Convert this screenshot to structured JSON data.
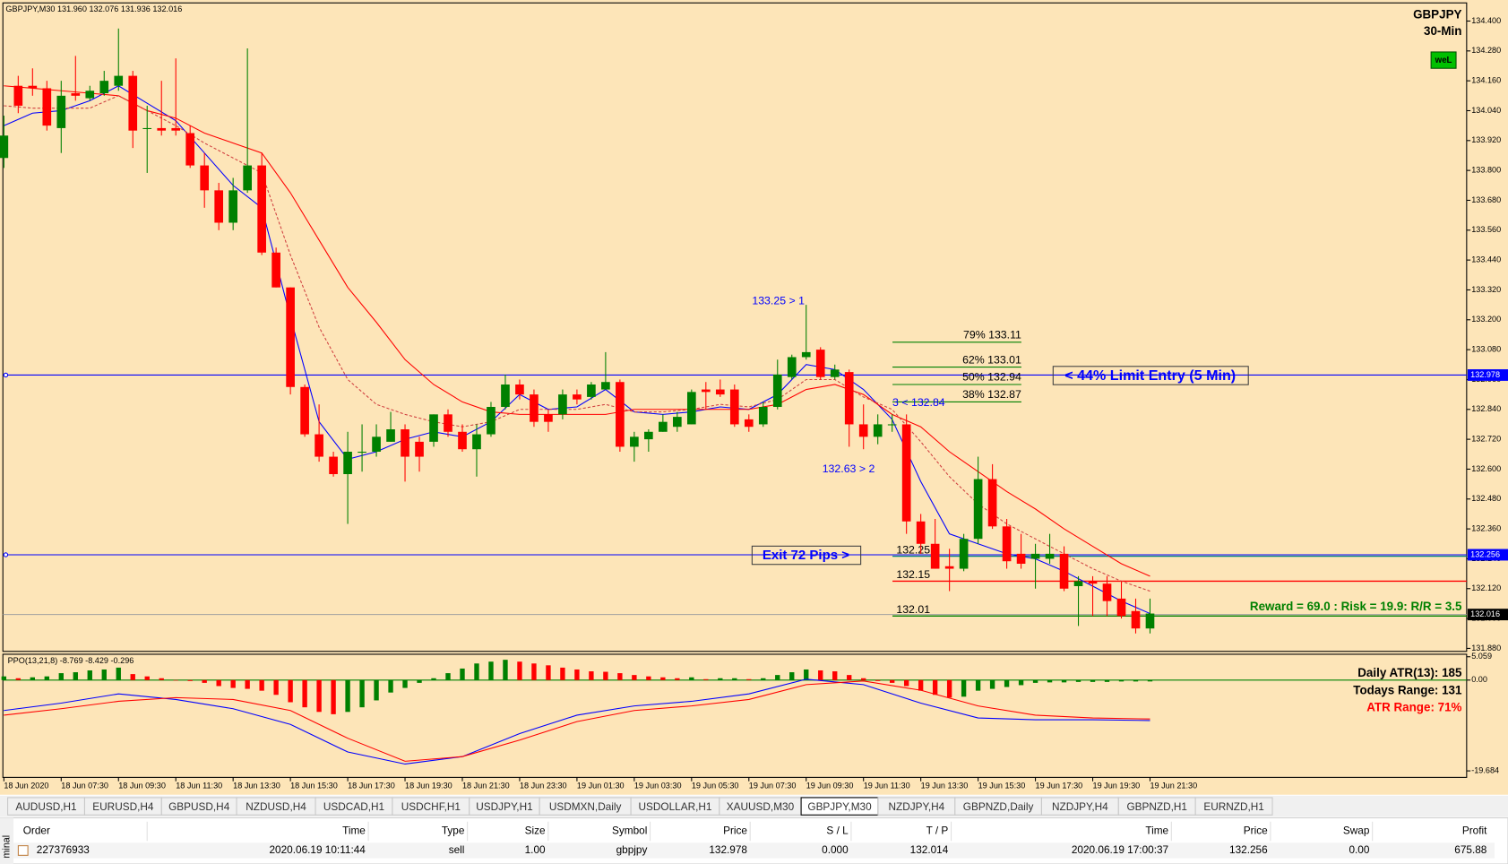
{
  "chart_data": [
    {
      "type": "candlestick",
      "title": "GBPJPY,M30  131.960 132.076 131.936 132.016",
      "symbol": "GBPJPY",
      "timeframe": "30-Min",
      "badge": "weL",
      "up_color": "#008000",
      "down_color": "#ff0000",
      "background": "#fde5b8",
      "open": [
        133.85,
        134.14,
        134.14,
        134.13,
        133.97,
        134.11,
        134.09,
        134.11,
        134.14,
        134.18,
        133.97,
        133.97,
        133.97,
        133.95,
        133.82,
        133.72,
        133.59,
        133.72,
        133.82,
        133.47,
        133.33,
        132.93,
        132.74,
        132.65,
        132.58,
        132.67,
        132.67,
        132.71,
        132.76,
        132.71,
        132.71,
        132.82,
        132.75,
        132.68,
        132.74,
        132.85,
        132.94,
        132.9,
        132.82,
        132.82,
        132.9,
        132.89,
        132.92,
        132.95,
        132.69,
        132.72,
        132.75,
        132.77,
        132.78,
        132.92,
        132.92,
        132.92,
        132.8,
        132.78,
        132.85,
        132.97,
        133.05,
        133.08,
        132.97,
        132.99,
        132.78,
        132.73,
        132.78,
        132.78,
        132.39,
        132.3,
        132.21,
        132.2,
        132.32,
        132.56,
        132.37,
        132.26,
        132.24,
        132.24,
        132.26,
        132.13,
        132.15,
        132.14,
        132.08,
        132.03,
        131.96
      ],
      "high": [
        134.02,
        134.18,
        134.21,
        134.16,
        134.16,
        134.26,
        134.14,
        134.2,
        134.37,
        134.2,
        134.06,
        134.16,
        134.25,
        133.98,
        133.87,
        133.75,
        133.77,
        134.29,
        133.87,
        133.49,
        133.33,
        132.94,
        132.86,
        132.67,
        132.75,
        132.78,
        132.78,
        132.83,
        132.78,
        132.73,
        132.82,
        132.84,
        132.78,
        132.78,
        132.87,
        132.98,
        132.96,
        132.92,
        132.84,
        132.92,
        132.92,
        132.95,
        133.07,
        132.96,
        132.75,
        132.76,
        132.82,
        132.83,
        132.92,
        132.95,
        132.96,
        132.94,
        132.82,
        132.87,
        133.04,
        133.06,
        133.26,
        133.09,
        133.02,
        133.0,
        132.86,
        132.82,
        132.82,
        132.82,
        132.42,
        132.4,
        132.28,
        132.34,
        132.65,
        132.62,
        132.4,
        132.34,
        132.3,
        132.34,
        132.29,
        132.17,
        132.17,
        132.17,
        132.15,
        132.08,
        132.08
      ],
      "low": [
        133.81,
        134.03,
        134.1,
        133.96,
        133.87,
        134.08,
        134.08,
        134.1,
        134.12,
        133.89,
        133.79,
        133.94,
        133.94,
        133.81,
        133.65,
        133.56,
        133.56,
        133.71,
        133.46,
        133.33,
        132.9,
        132.73,
        132.63,
        132.57,
        132.38,
        132.59,
        132.65,
        132.71,
        132.55,
        132.59,
        132.69,
        132.73,
        132.67,
        132.57,
        132.73,
        132.84,
        132.88,
        132.77,
        132.75,
        132.8,
        132.86,
        132.88,
        132.92,
        132.67,
        132.63,
        132.67,
        132.75,
        132.75,
        132.78,
        132.84,
        132.89,
        132.77,
        132.75,
        132.77,
        132.84,
        132.96,
        133.04,
        132.96,
        132.96,
        132.69,
        132.68,
        132.7,
        132.75,
        132.34,
        132.26,
        132.2,
        132.11,
        132.19,
        132.3,
        132.36,
        132.2,
        132.2,
        132.12,
        132.22,
        132.11,
        131.97,
        132.01,
        132.01,
        132.0,
        131.94,
        131.94
      ],
      "close": [
        133.94,
        134.06,
        134.13,
        133.98,
        134.1,
        134.1,
        134.12,
        134.16,
        134.18,
        133.96,
        133.97,
        133.96,
        133.96,
        133.82,
        133.72,
        133.59,
        133.72,
        133.82,
        133.47,
        133.33,
        132.93,
        132.74,
        132.65,
        132.58,
        132.67,
        132.67,
        132.73,
        132.76,
        132.65,
        132.65,
        132.82,
        132.75,
        132.68,
        132.74,
        132.85,
        132.94,
        132.9,
        132.79,
        132.79,
        132.9,
        132.88,
        132.94,
        132.95,
        132.69,
        132.73,
        132.75,
        132.79,
        132.81,
        132.91,
        132.91,
        132.9,
        132.78,
        132.77,
        132.85,
        132.98,
        133.05,
        133.07,
        132.97,
        133.0,
        132.78,
        132.73,
        132.78,
        132.78,
        132.39,
        132.3,
        132.2,
        132.2,
        132.32,
        132.56,
        132.37,
        132.23,
        132.22,
        132.26,
        132.26,
        132.12,
        132.15,
        132.14,
        132.07,
        132.01,
        131.96,
        132.02
      ],
      "lines": [
        {
          "color": "#0000ff",
          "dash": false,
          "x": [
            0,
            2,
            4,
            6,
            8,
            10,
            12,
            14,
            16,
            18,
            20,
            22,
            24,
            26,
            28,
            30,
            32,
            34,
            36,
            38,
            40,
            42,
            44,
            46,
            48,
            50,
            52,
            54,
            56,
            58,
            60,
            62,
            64,
            66,
            68,
            70,
            72,
            74,
            76,
            78,
            80
          ],
          "values": [
            133.98,
            134.03,
            134.04,
            134.08,
            134.14,
            134.07,
            134.0,
            133.87,
            133.74,
            133.65,
            133.21,
            132.79,
            132.64,
            132.67,
            132.72,
            132.75,
            132.73,
            132.79,
            132.9,
            132.84,
            132.85,
            132.92,
            132.83,
            132.82,
            132.83,
            132.85,
            132.84,
            132.9,
            133.02,
            133.0,
            132.92,
            132.8,
            132.55,
            132.34,
            132.3,
            132.26,
            132.24,
            132.19,
            132.13,
            132.07,
            132.02
          ]
        },
        {
          "color": "#ff0000",
          "dash": false,
          "x": [
            0,
            2,
            4,
            6,
            8,
            10,
            12,
            14,
            16,
            18,
            20,
            22,
            24,
            26,
            28,
            30,
            32,
            34,
            36,
            38,
            40,
            42,
            44,
            46,
            48,
            50,
            52,
            54,
            56,
            58,
            60,
            62,
            64,
            66,
            68,
            70,
            72,
            74,
            76,
            78,
            80
          ],
          "values": [
            134.14,
            134.13,
            134.12,
            134.11,
            134.1,
            134.04,
            134.01,
            133.95,
            133.91,
            133.87,
            133.71,
            133.52,
            133.33,
            133.19,
            133.04,
            132.94,
            132.87,
            132.83,
            132.82,
            132.82,
            132.82,
            132.82,
            132.84,
            132.84,
            132.84,
            132.84,
            132.84,
            132.86,
            132.92,
            132.94,
            132.9,
            132.82,
            132.77,
            132.67,
            132.59,
            132.51,
            132.44,
            132.36,
            132.29,
            132.22,
            132.17
          ]
        },
        {
          "color": "#d04040",
          "dash": true,
          "x": [
            0,
            2,
            4,
            6,
            8,
            10,
            12,
            14,
            16,
            18,
            20,
            22,
            24,
            26,
            28,
            30,
            32,
            34,
            36,
            38,
            40,
            42,
            44,
            46,
            48,
            50,
            52,
            54,
            56,
            58,
            60,
            62,
            64,
            66,
            68,
            70,
            72,
            74,
            76,
            78,
            80
          ],
          "values": [
            134.06,
            134.05,
            134.05,
            134.05,
            134.1,
            134.04,
            133.98,
            133.91,
            133.85,
            133.79,
            133.46,
            133.17,
            132.96,
            132.86,
            132.82,
            132.79,
            132.77,
            132.79,
            132.84,
            132.84,
            132.84,
            132.86,
            132.83,
            132.83,
            132.84,
            132.86,
            132.85,
            132.88,
            132.96,
            132.96,
            132.89,
            132.84,
            132.71,
            132.57,
            132.46,
            132.38,
            132.32,
            132.26,
            132.2,
            132.15,
            132.11
          ]
        }
      ],
      "xlim": [
        -0.07,
        102.1
      ],
      "xticks": [
        {
          "value": 0,
          "label": "18 Jun 2020"
        },
        {
          "value": 4,
          "label": "18 Jun 07:30"
        },
        {
          "value": 8,
          "label": "18 Jun 09:30"
        },
        {
          "value": 12,
          "label": "18 Jun 11:30"
        },
        {
          "value": 16,
          "label": "18 Jun 13:30"
        },
        {
          "value": 20,
          "label": "18 Jun 15:30"
        },
        {
          "value": 24,
          "label": "18 Jun 17:30"
        },
        {
          "value": 28,
          "label": "18 Jun 19:30"
        },
        {
          "value": 32,
          "label": "18 Jun 21:30"
        },
        {
          "value": 36,
          "label": "18 Jun 23:30"
        },
        {
          "value": 40,
          "label": "19 Jun 01:30"
        },
        {
          "value": 44,
          "label": "19 Jun 03:30"
        },
        {
          "value": 48,
          "label": "19 Jun 05:30"
        },
        {
          "value": 52,
          "label": "19 Jun 07:30"
        },
        {
          "value": 56,
          "label": "19 Jun 09:30"
        },
        {
          "value": 60,
          "label": "19 Jun 11:30"
        },
        {
          "value": 64,
          "label": "19 Jun 13:30"
        },
        {
          "value": 68,
          "label": "19 Jun 15:30"
        },
        {
          "value": 72,
          "label": "19 Jun 17:30"
        },
        {
          "value": 76,
          "label": "19 Jun 19:30"
        },
        {
          "value": 80,
          "label": "19 Jun 21:30"
        }
      ],
      "ylim": [
        131.868,
        134.473
      ],
      "yticks": [
        {
          "value": 134.4,
          "label": "134.400"
        },
        {
          "value": 134.28,
          "label": "134.280"
        },
        {
          "value": 134.16,
          "label": "134.160"
        },
        {
          "value": 134.04,
          "label": "134.040"
        },
        {
          "value": 133.92,
          "label": "133.920"
        },
        {
          "value": 133.8,
          "label": "133.800"
        },
        {
          "value": 133.68,
          "label": "133.680"
        },
        {
          "value": 133.56,
          "label": "133.560"
        },
        {
          "value": 133.44,
          "label": "133.440"
        },
        {
          "value": 133.32,
          "label": "133.320"
        },
        {
          "value": 133.2,
          "label": "133.200"
        },
        {
          "value": 133.08,
          "label": "133.080"
        },
        {
          "value": 132.96,
          "label": "132.960"
        },
        {
          "value": 132.84,
          "label": "132.840"
        },
        {
          "value": 132.72,
          "label": "132.720"
        },
        {
          "value": 132.6,
          "label": "132.600"
        },
        {
          "value": 132.48,
          "label": "132.480"
        },
        {
          "value": 132.36,
          "label": "132.360"
        },
        {
          "value": 132.24,
          "label": "132.240"
        },
        {
          "value": 132.12,
          "label": "132.120"
        },
        {
          "value": 132.0,
          "label": "132.000"
        },
        {
          "value": 131.88,
          "label": "131.880"
        }
      ],
      "price_tags": [
        {
          "value": 132.978,
          "label": "132.978",
          "color": "#0000ff",
          "line_color": "#0000ff"
        },
        {
          "value": 132.256,
          "label": "132.256",
          "color": "#0000ff",
          "line_color": "#0000ff"
        },
        {
          "value": 132.016,
          "label": "132.016",
          "color": "#000000",
          "line_color": "#a0a0a0"
        }
      ],
      "fib_color": "#008000",
      "fib_levels": [
        {
          "value": 133.11,
          "label": "79% 133.11"
        },
        {
          "value": 133.01,
          "label": "62% 133.01"
        },
        {
          "value": 132.94,
          "label": "50% 132.94"
        },
        {
          "value": 132.87,
          "label": "38% 132.87"
        }
      ],
      "trade_levels": [
        {
          "value": 132.25,
          "label": "132.25",
          "color": "#008080"
        },
        {
          "value": 132.15,
          "label": "132.15",
          "color": "#ff0000"
        },
        {
          "value": 132.01,
          "label": "132.01",
          "color": "#008000"
        }
      ],
      "annotations": {
        "swing_1": "133.25 > 1",
        "swing_2": "132.63 > 2",
        "swing_3": "3 < 132.84"
      },
      "entry_text": "< 44% Limit Entry (5 Min)",
      "exit_text": "Exit 72 Pips >",
      "reward_text": "Reward = 69.0 : Risk = 19.9: R/R = 3.5"
    },
    {
      "type": "ppo",
      "title": "PPO(13,21,8) -8.769 -8.429 -0.296",
      "up_color": "#008000",
      "down_color": "#ff0000",
      "values": [
        0.8,
        0.4,
        0.6,
        0.8,
        1.5,
        1.7,
        2.1,
        2.3,
        2.7,
        1.3,
        0.8,
        0.4,
        0,
        -0.2,
        -0.6,
        -1.3,
        -1.7,
        -1.9,
        -2.3,
        -3.2,
        -4.8,
        -5.9,
        -6.9,
        -7.4,
        -6.9,
        -5.9,
        -4.4,
        -2.7,
        -1.7,
        -0.6,
        0.4,
        1.5,
        2.5,
        3.6,
        4.0,
        4.4,
        4.0,
        3.6,
        3.2,
        2.7,
        2.3,
        1.9,
        1.8,
        1.5,
        1.1,
        0.8,
        0.6,
        0.4,
        0.6,
        0.2,
        0.4,
        0.4,
        0.2,
        0.4,
        1.1,
        1.7,
        2.3,
        2.1,
        1.9,
        1.1,
        0.4,
        -0.2,
        -0.6,
        -1.3,
        -2.3,
        -3.2,
        -3.8,
        -3.6,
        -2.3,
        -1.9,
        -1.5,
        -1.1,
        -0.6,
        -0.5,
        -0.5,
        -0.4,
        -0.4,
        -0.4,
        -0.3,
        -0.3,
        -0.296
      ],
      "lines": [
        {
          "color": "#0000ff",
          "x": [
            0,
            4,
            8,
            12,
            16,
            20,
            24,
            28,
            32,
            36,
            40,
            44,
            48,
            52,
            56,
            60,
            64,
            68,
            72,
            76,
            80
          ],
          "values": [
            -6.6,
            -5.0,
            -3.0,
            -4.2,
            -6.2,
            -9.6,
            -15.6,
            -18.2,
            -16.6,
            -11.6,
            -7.6,
            -5.6,
            -4.6,
            -3.0,
            0.2,
            -1.0,
            -5.0,
            -8.2,
            -8.6,
            -8.6,
            -8.769
          ]
        },
        {
          "color": "#ff0000",
          "x": [
            0,
            4,
            8,
            12,
            16,
            20,
            24,
            28,
            32,
            36,
            40,
            44,
            48,
            52,
            56,
            60,
            64,
            68,
            72,
            76,
            80
          ],
          "values": [
            -7.6,
            -6.2,
            -4.6,
            -3.8,
            -4.2,
            -6.6,
            -12.6,
            -17.6,
            -16.6,
            -13.0,
            -9.0,
            -6.6,
            -5.6,
            -4.2,
            -1.0,
            -0.2,
            -2.2,
            -5.6,
            -7.6,
            -8.2,
            -8.429
          ]
        }
      ],
      "ylim": [
        -21.1,
        5.6
      ],
      "yticks": [
        5.059,
        {
          "value": 0,
          "label": "0.00"
        },
        -19.684
      ],
      "stats": [
        {
          "text": "Daily ATR(13): 185",
          "color": "#000000"
        },
        {
          "text": "Todays Range: 131",
          "color": "#000000"
        },
        {
          "text": "ATR Range: 71%",
          "color": "#ff0000"
        }
      ]
    }
  ],
  "tabs": [
    "AUDUSD,H1",
    "EURUSD,H4",
    "GBPUSD,H4",
    "NZDUSD,H4",
    "USDCAD,H1",
    "USDCHF,H1",
    "USDJPY,H1",
    "USDMXN,Daily",
    "USDOLLAR,H1",
    "XAUUSD,M30",
    "GBPJPY,M30",
    "NZDJPY,H4",
    "GBPNZD,Daily",
    "NZDJPY,H4",
    "GBPNZD,H1",
    "EURNZD,H1"
  ],
  "active_tab": "GBPJPY,M30",
  "terminal": {
    "side_label": "minal",
    "columns": [
      "Order",
      "Time",
      "Type",
      "Size",
      "Symbol",
      "Price",
      "S / L",
      "T / P",
      "Time",
      "Price",
      "Swap",
      "Profit"
    ],
    "rows": [
      [
        "227376933",
        "2020.06.19 10:11:44",
        "sell",
        "1.00",
        "gbpjpy",
        "132.978",
        "0.000",
        "132.014",
        "2020.06.19 17:00:37",
        "132.256",
        "0.00",
        "675.88"
      ]
    ]
  }
}
